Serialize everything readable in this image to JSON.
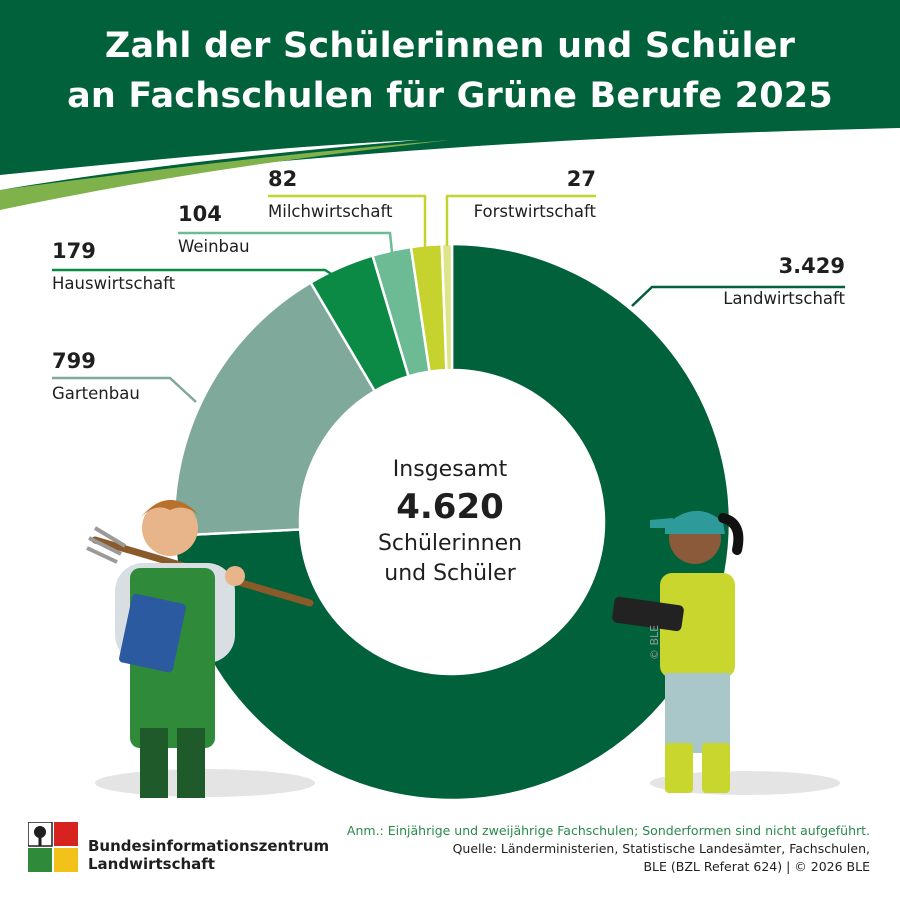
{
  "header": {
    "title_line1": "Zahl der Schülerinnen und Schüler",
    "title_line2": "an Fachschulen für Grüne Berufe 2025"
  },
  "center": {
    "line1": "Insgesamt",
    "total": "4.620",
    "line3": "Schülerinnen",
    "line4": "und Schüler"
  },
  "chart_data": {
    "type": "pie",
    "title": "Zahl der Schülerinnen und Schüler an Fachschulen für Grüne Berufe 2025",
    "total": 4620,
    "total_label": "4.620",
    "categories": [
      "Landwirtschaft",
      "Gartenbau",
      "Hauswirtschaft",
      "Weinbau",
      "Milchwirtschaft",
      "Forstwirtschaft"
    ],
    "values": [
      3429,
      799,
      179,
      104,
      82,
      27
    ],
    "value_labels": [
      "3.429",
      "799",
      "179",
      "104",
      "82",
      "27"
    ],
    "colors": [
      "#00613a",
      "#7fa99b",
      "#0a8a45",
      "#6cbb95",
      "#c6d22e",
      "#dde48a"
    ]
  },
  "copyright": "© BLE",
  "footer": {
    "logo_line1": "Bundesinformationszentrum",
    "logo_line2": "Landwirtschaft",
    "note": "Anm.: Einjährige und zweijährige Fachschulen; Sonderformen sind nicht aufgeführt.",
    "source1": "Quelle: Länderministerien, Statistische Landesämter, Fachschulen,",
    "source2": "BLE (BZL Referat 624) | © 2026 BLE"
  },
  "colors": {
    "header_green": "#00613a",
    "accent_green": "#2a8a4a"
  },
  "icons": [
    "farmer-illustration",
    "farmer-woman-with-tablet-illustration",
    "bzl-logo"
  ]
}
